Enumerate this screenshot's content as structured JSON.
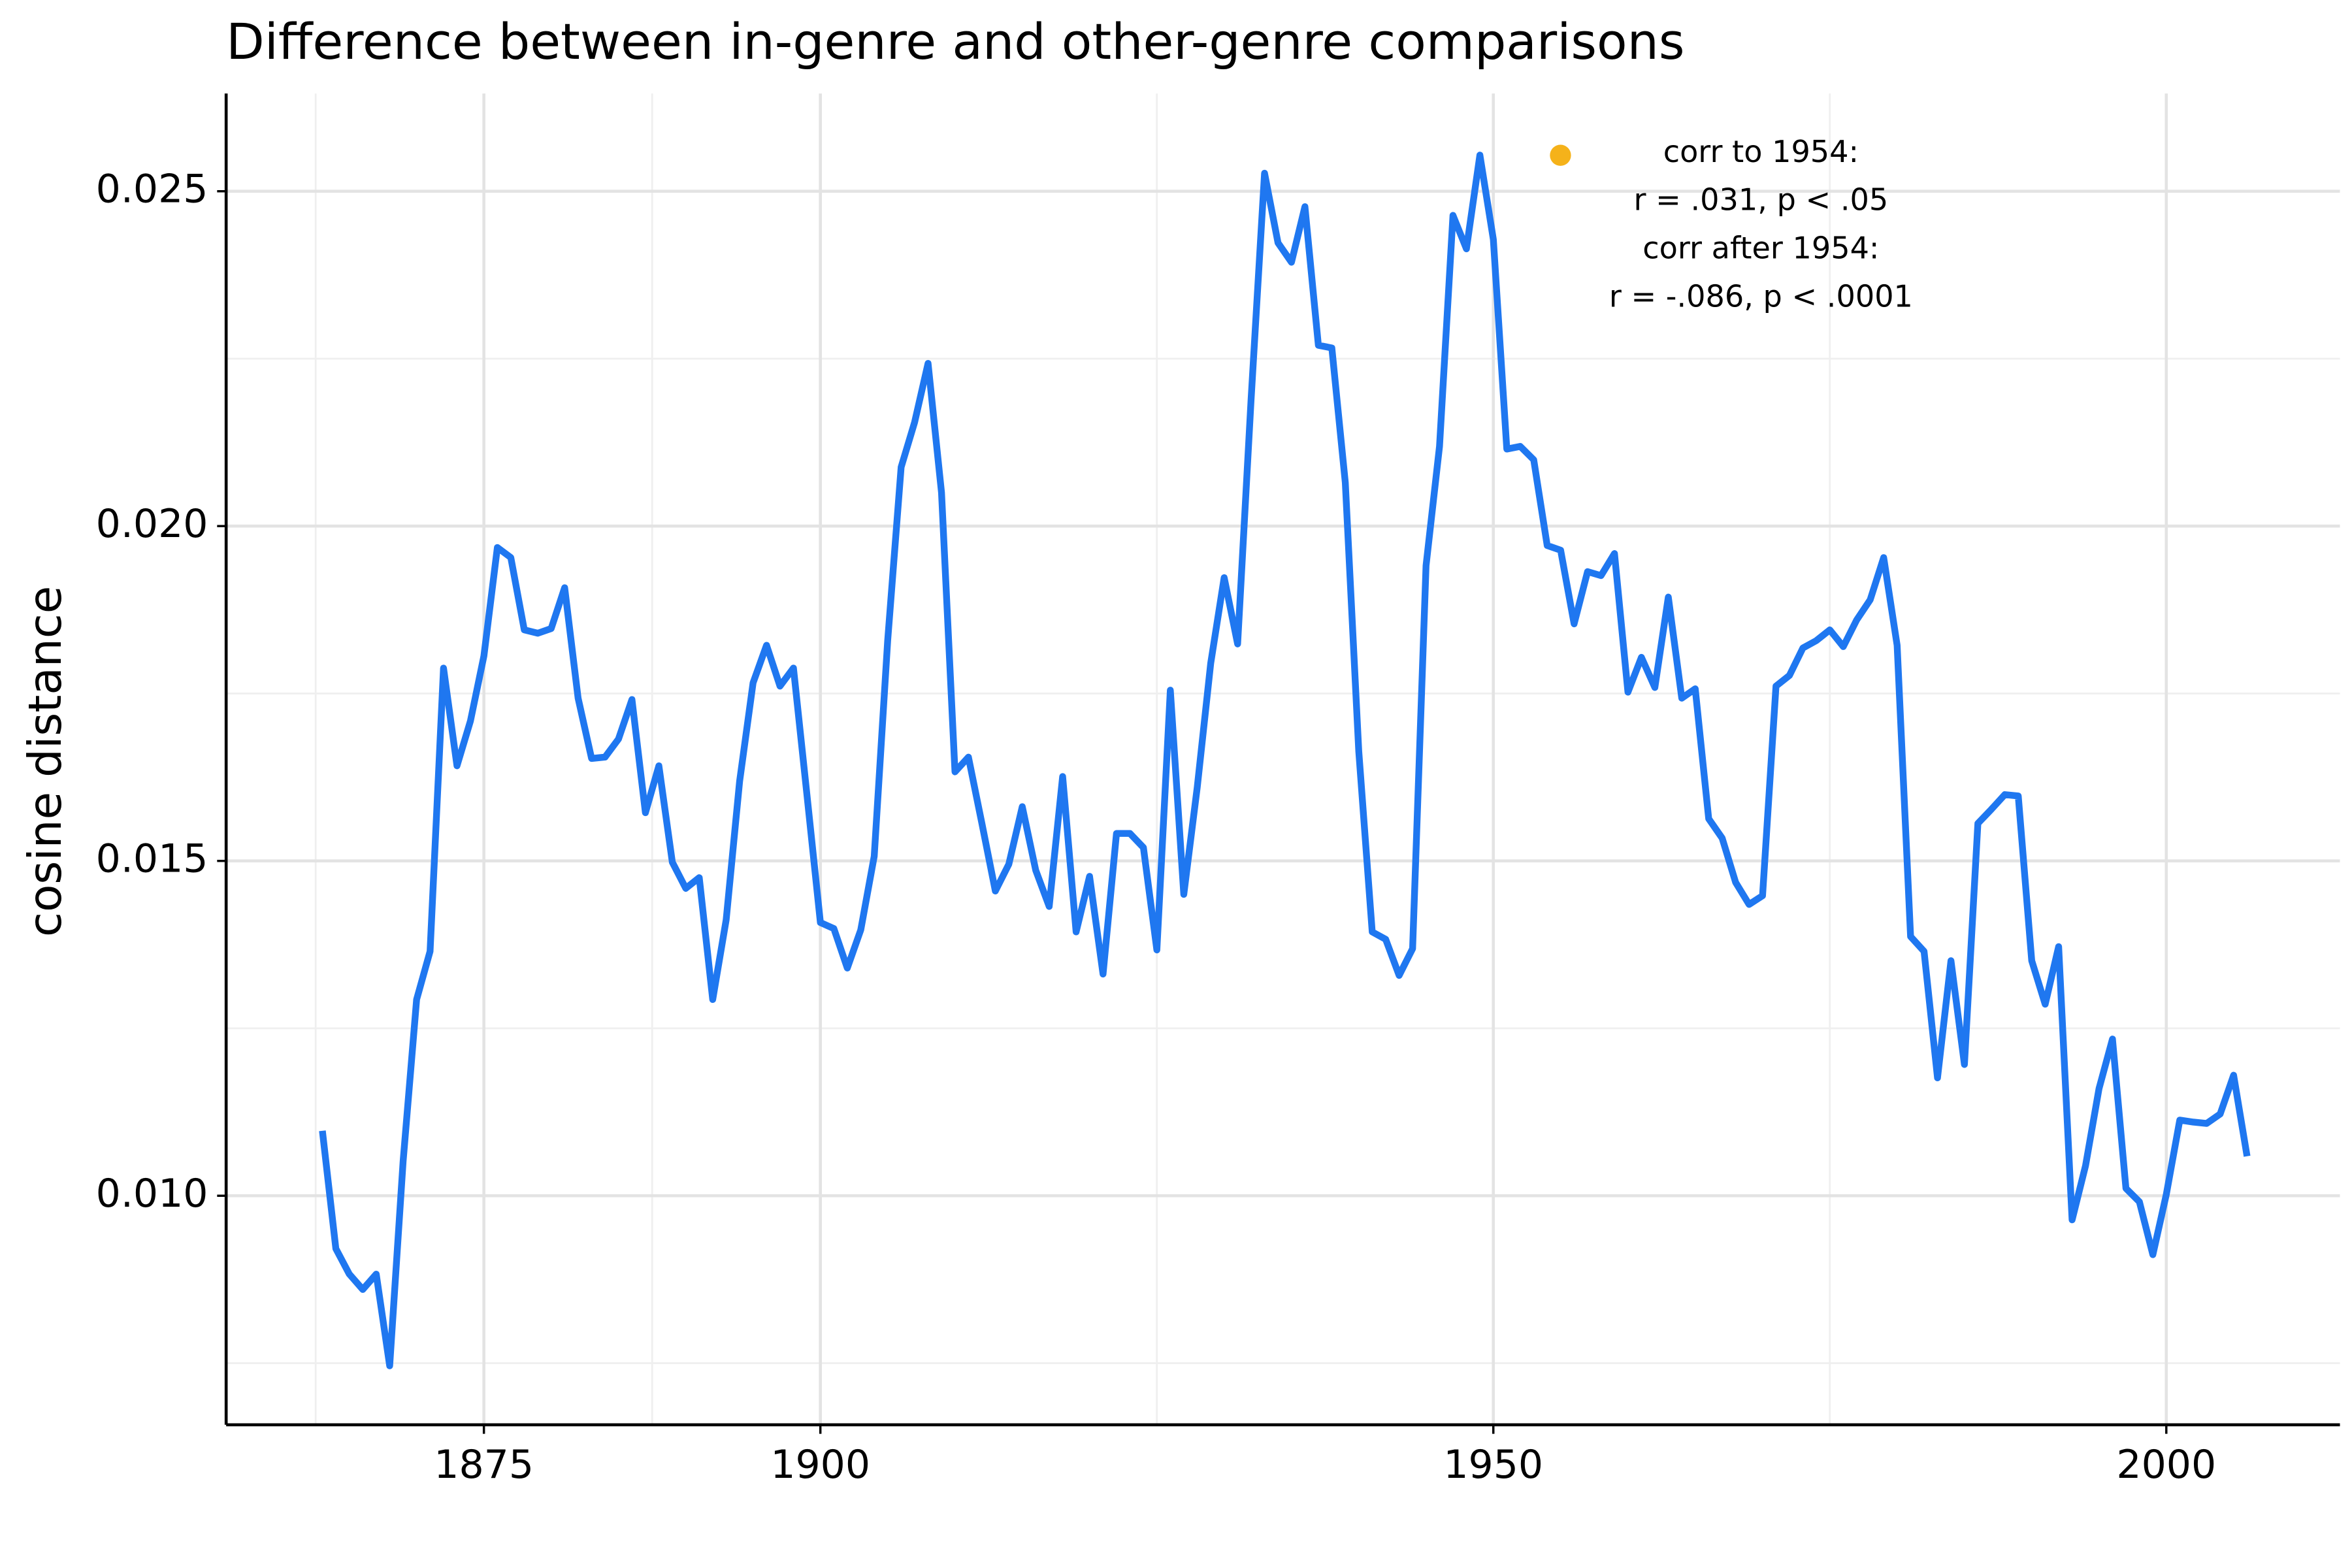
{
  "chart_data": {
    "type": "line",
    "title": "Difference between in-genre and other-genre comparisons",
    "y_label": "cosine distance",
    "annotation": [
      "corr to 1954:",
      "r = .031, p < .05",
      "corr after 1954:",
      "r = -.086, p < .0001"
    ],
    "color": "#1f77f0",
    "grid": true,
    "xlim": [
      1855.85,
      2012.9
    ],
    "ylim": [
      0.00658,
      0.02646
    ],
    "xticks": [
      1875,
      1900,
      1950,
      2000
    ],
    "xticks_minor": [
      1862.5,
      1887.5,
      1925,
      1975
    ],
    "yticks": [
      {
        "value": 0.01,
        "label": "0.010"
      },
      {
        "value": 0.015,
        "label": "0.015"
      },
      {
        "value": 0.02,
        "label": "0.020"
      },
      {
        "value": 0.025,
        "label": "0.025"
      }
    ],
    "yticks_minor": [
      0.0075,
      0.0125,
      0.0175,
      0.0225
    ],
    "x": [
      1863,
      1864,
      1865,
      1866,
      1867,
      1868,
      1869,
      1870,
      1871,
      1872,
      1873,
      1874,
      1875,
      1876,
      1877,
      1878,
      1879,
      1880,
      1881,
      1882,
      1883,
      1884,
      1885,
      1886,
      1887,
      1888,
      1889,
      1890,
      1891,
      1892,
      1893,
      1894,
      1895,
      1896,
      1897,
      1898,
      1899,
      1900,
      1901,
      1902,
      1903,
      1904,
      1905,
      1906,
      1907,
      1908,
      1909,
      1910,
      1911,
      1912,
      1913,
      1914,
      1915,
      1916,
      1917,
      1918,
      1919,
      1920,
      1921,
      1922,
      1923,
      1924,
      1925,
      1926,
      1927,
      1928,
      1929,
      1930,
      1931,
      1932,
      1933,
      1934,
      1935,
      1936,
      1937,
      1938,
      1939,
      1940,
      1941,
      1942,
      1943,
      1944,
      1945,
      1946,
      1947,
      1948,
      1949,
      1950,
      1951,
      1952,
      1953,
      1954,
      1955,
      1956,
      1957,
      1958,
      1959,
      1960,
      1961,
      1962,
      1963,
      1964,
      1965,
      1966,
      1967,
      1968,
      1969,
      1970,
      1971,
      1972,
      1973,
      1974,
      1975,
      1976,
      1977,
      1978,
      1979,
      1980,
      1981,
      1982,
      1983,
      1984,
      1985,
      1986,
      1987,
      1988,
      1989,
      1990,
      1991,
      1992,
      1993,
      1994,
      1995,
      1996,
      1997,
      1998,
      1999,
      2000,
      2001,
      2002,
      2003,
      2004,
      2005,
      2006
    ],
    "values": [
      0.01097,
      0.00921,
      0.00883,
      0.0086,
      0.00883,
      0.00746,
      0.01052,
      0.01293,
      0.01365,
      0.01788,
      0.01642,
      0.01709,
      0.01806,
      0.01968,
      0.01953,
      0.01845,
      0.0184,
      0.01847,
      0.01908,
      0.01743,
      0.01653,
      0.01655,
      0.01682,
      0.01741,
      0.01572,
      0.01642,
      0.01498,
      0.01459,
      0.01475,
      0.01293,
      0.01412,
      0.01619,
      0.01766,
      0.01822,
      0.01761,
      0.01788,
      0.01599,
      0.01408,
      0.01399,
      0.0134,
      0.01397,
      0.01507,
      0.01829,
      0.02088,
      0.02155,
      0.02243,
      0.0205,
      0.01633,
      0.01655,
      0.01556,
      0.01455,
      0.01495,
      0.01581,
      0.01486,
      0.01432,
      0.01626,
      0.01394,
      0.01477,
      0.01331,
      0.01541,
      0.01541,
      0.0152,
      0.01367,
      0.01755,
      0.0145,
      0.0161,
      0.01795,
      0.01923,
      0.01824,
      0.02189,
      0.02527,
      0.02423,
      0.02394,
      0.02477,
      0.0227,
      0.02266,
      0.02065,
      0.01664,
      0.01394,
      0.01383,
      0.01329,
      0.01369,
      0.01941,
      0.02119,
      0.02464,
      0.02414,
      0.02554,
      0.02428,
      0.02115,
      0.02119,
      0.02099,
      0.01971,
      0.01964,
      0.01854,
      0.01932,
      0.01926,
      0.01959,
      0.01752,
      0.01804,
      0.01759,
      0.01894,
      0.01743,
      0.01757,
      0.01563,
      0.01534,
      0.01468,
      0.01435,
      0.01448,
      0.01761,
      0.01777,
      0.01818,
      0.01829,
      0.01845,
      0.0182,
      0.0186,
      0.0189,
      0.01953,
      0.01822,
      0.01387,
      0.01365,
      0.01176,
      0.01351,
      0.01196,
      0.01556,
      0.01577,
      0.01599,
      0.01597,
      0.01351,
      0.01286,
      0.01372,
      0.00964,
      0.01045,
      0.0116,
      0.01234,
      0.01011,
      0.00991,
      0.00912,
      0.01002,
      0.01113,
      0.0111,
      0.01108,
      0.01122,
      0.0118,
      0.01059
    ]
  }
}
